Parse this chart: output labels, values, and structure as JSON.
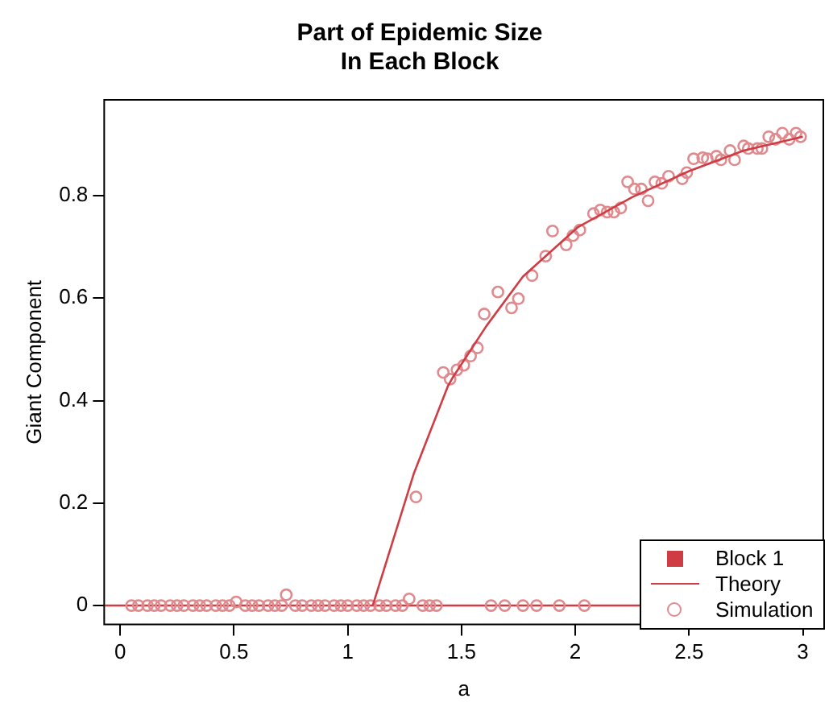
{
  "chart_data": {
    "type": "line",
    "title": "Part of Epidemic Size\nIn Each Block",
    "xlabel": "a",
    "ylabel": "Giant Component",
    "xlim": [
      -0.07,
      3.09
    ],
    "xticks": [
      0,
      0.5,
      1,
      1.5,
      2,
      2.5,
      3
    ],
    "ylim": [
      -0.037,
      0.987
    ],
    "yticks": [
      0,
      0.2,
      0.4,
      0.6,
      0.8
    ],
    "grid": false,
    "legend": "bottom right",
    "legend_title": "Block 1",
    "ref_lines": [
      {
        "axis": "y",
        "value": 0,
        "color": "#d03c44",
        "line_style": "solid"
      }
    ],
    "series": [
      {
        "name": "Theory",
        "color": "#d03c44",
        "marker": "none",
        "line_style": "solid",
        "x": [
          1.11,
          1.29,
          1.44,
          1.46,
          1.61,
          1.77,
          2.01,
          2.25,
          2.5,
          2.74,
          3.0
        ],
        "values": [
          0,
          0.257,
          0.428,
          0.444,
          0.546,
          0.642,
          0.738,
          0.797,
          0.848,
          0.888,
          0.915
        ]
      },
      {
        "name": "Simulation",
        "type": "scatter",
        "color": "#e08a8e",
        "marker": "circle",
        "x": [
          0.05,
          0.08,
          0.12,
          0.15,
          0.18,
          0.22,
          0.25,
          0.28,
          0.32,
          0.35,
          0.38,
          0.42,
          0.45,
          0.48,
          0.51,
          0.55,
          0.58,
          0.61,
          0.65,
          0.68,
          0.71,
          0.73,
          0.77,
          0.8,
          0.84,
          0.87,
          0.9,
          0.94,
          0.97,
          1.0,
          1.04,
          1.07,
          1.1,
          1.14,
          1.17,
          1.21,
          1.24,
          1.27,
          1.3,
          1.33,
          1.36,
          1.39,
          1.42,
          1.45,
          1.48,
          1.51,
          1.54,
          1.57,
          1.6,
          1.63,
          1.66,
          1.69,
          1.72,
          1.75,
          1.77,
          1.81,
          1.83,
          1.87,
          1.9,
          1.93,
          1.96,
          1.99,
          2.02,
          2.04,
          2.08,
          2.11,
          2.14,
          2.17,
          2.2,
          2.23,
          2.26,
          2.29,
          2.32,
          2.35,
          2.38,
          2.41,
          2.47,
          2.49,
          2.52,
          2.56,
          2.58,
          2.62,
          2.64,
          2.68,
          2.7,
          2.74,
          2.76,
          2.8,
          2.82,
          2.85,
          2.88,
          2.91,
          2.94,
          2.97,
          2.99
        ],
        "values": [
          0,
          0,
          0,
          0,
          0,
          0,
          0,
          0,
          0,
          0,
          0,
          0,
          0,
          0,
          0.007,
          0,
          0,
          0,
          0,
          0,
          0,
          0.021,
          0,
          0,
          0,
          0,
          0,
          0,
          0,
          0,
          0,
          0,
          0,
          0,
          0,
          0,
          0,
          0.013,
          0.212,
          0,
          0,
          0,
          0.455,
          0.442,
          0.46,
          0.469,
          0.487,
          0.503,
          0.569,
          0,
          0.612,
          0,
          0.581,
          0.599,
          0,
          0.644,
          0,
          0.682,
          0.731,
          0,
          0.704,
          0.722,
          0.733,
          0,
          0.765,
          0.772,
          0.768,
          0.768,
          0.776,
          0.827,
          0.813,
          0.813,
          0.79,
          0.827,
          0.824,
          0.838,
          0.833,
          0.845,
          0.872,
          0.874,
          0.872,
          0.877,
          0.87,
          0.888,
          0.87,
          0.897,
          0.892,
          0.892,
          0.892,
          0.915,
          0.91,
          0.922,
          0.91,
          0.922,
          0.915
        ]
      }
    ]
  }
}
